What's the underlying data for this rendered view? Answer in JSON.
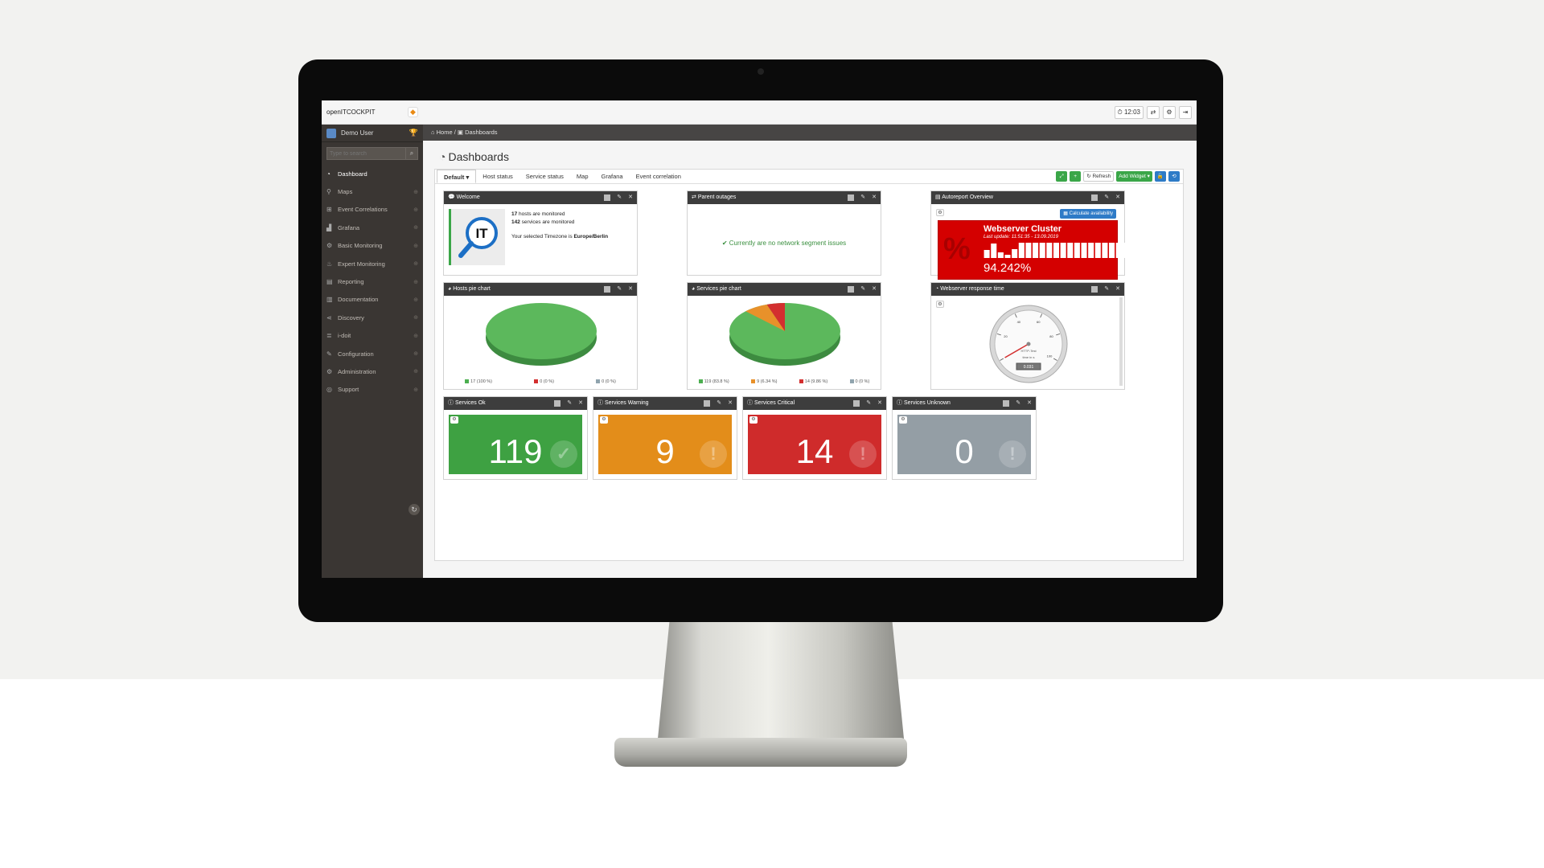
{
  "app": {
    "brand": "openITCOCKPIT",
    "clock": "12:03",
    "user": "Demo User",
    "search_placeholder": "Type to search"
  },
  "sidebar": {
    "items": [
      {
        "label": "Dashboard",
        "icon": "dashboard-icon"
      },
      {
        "label": "Maps",
        "icon": "map-marker-icon"
      },
      {
        "label": "Event Correlations",
        "icon": "sitemap-icon"
      },
      {
        "label": "Grafana",
        "icon": "area-chart-icon"
      },
      {
        "label": "Basic Monitoring",
        "icon": "cogs-icon"
      },
      {
        "label": "Expert Monitoring",
        "icon": "fire-icon"
      },
      {
        "label": "Reporting",
        "icon": "file-icon"
      },
      {
        "label": "Documentation",
        "icon": "book-icon"
      },
      {
        "label": "Discovery",
        "icon": "share-icon"
      },
      {
        "label": "i-doit",
        "icon": "database-icon"
      },
      {
        "label": "Configuration",
        "icon": "wrench-icon"
      },
      {
        "label": "Administration",
        "icon": "cogs-icon"
      },
      {
        "label": "Support",
        "icon": "life-ring-icon"
      }
    ]
  },
  "breadcrumb": {
    "home": "Home",
    "separator": "/",
    "current": "Dashboards"
  },
  "page": {
    "title": "Dashboards"
  },
  "tabs": [
    "Default",
    "Host status",
    "Service status",
    "Map",
    "Grafana",
    "Event correlation"
  ],
  "tab_tools": {
    "refresh": "Refresh",
    "add_widget": "Add Widget"
  },
  "widgets": {
    "welcome": {
      "title": "Welcome",
      "hosts_count": "17",
      "hosts_text": "hosts are monitored",
      "services_count": "142",
      "services_text": "services are monitored",
      "timezone_text": "Your selected Timezone is",
      "timezone": "Europe/Berlin"
    },
    "parent_outages": {
      "title": "Parent outages",
      "message": "Currently are no network segment issues"
    },
    "autoreport": {
      "title": "Autoreport Overview",
      "calc_button": "Calculate availability",
      "report_title": "Webserver Cluster",
      "last_update": "Last update: 11:51:35 - 13.09.2019",
      "value": "94.242%",
      "pct_symbol": "%",
      "bar_fractions": [
        0.5,
        0.9,
        0.35,
        0.2,
        0.55,
        0.95,
        0.95,
        0.95,
        0.95,
        0.95,
        0.95,
        0.95,
        0.95,
        0.95,
        0.95,
        0.95,
        0.95,
        0.95,
        0.95,
        0.95,
        0.95,
        0.95
      ]
    },
    "hosts_pie": {
      "title": "Hosts pie chart",
      "legend": [
        {
          "label": "17 (100 %)",
          "color": "#4caf50"
        },
        {
          "label": "0 (0 %)",
          "color": "#d32f2f"
        },
        {
          "label": "0 (0 %)",
          "color": "#90a4ae"
        }
      ]
    },
    "services_pie": {
      "title": "Services pie chart",
      "legend": [
        {
          "label": "119 (83.8 %)",
          "color": "#4caf50"
        },
        {
          "label": "9 (6.34 %)",
          "color": "#e8912a"
        },
        {
          "label": "14 (9.86 %)",
          "color": "#d32f2f"
        },
        {
          "label": "0 (0 %)",
          "color": "#90a4ae"
        }
      ]
    },
    "response_time": {
      "title": "Webserver response time",
      "gauge_value": "0.031",
      "gauge_label": "HTTP-Test",
      "gauge_unit": "time in s",
      "gauge_ticks": [
        "20",
        "40",
        "60",
        "80",
        "100"
      ],
      "needle_fraction": 0.0
    },
    "services_ok": {
      "title": "Services Ok",
      "value": "119",
      "color": "#3ea142",
      "badge": "✓"
    },
    "services_warning": {
      "title": "Services Warning",
      "value": "9",
      "color": "#e38d1a",
      "badge": "!"
    },
    "services_critical": {
      "title": "Services Critical",
      "value": "14",
      "color": "#cf2b2b",
      "badge": "!"
    },
    "services_unknown": {
      "title": "Services Unknown",
      "value": "0",
      "color": "#949ea5",
      "badge": "!"
    }
  },
  "colors": {
    "sidebar_bg": "#3a3633",
    "widget_header": "#3d3d3d",
    "accent_green": "#3aa648",
    "accent_blue": "#2e7bc7"
  }
}
